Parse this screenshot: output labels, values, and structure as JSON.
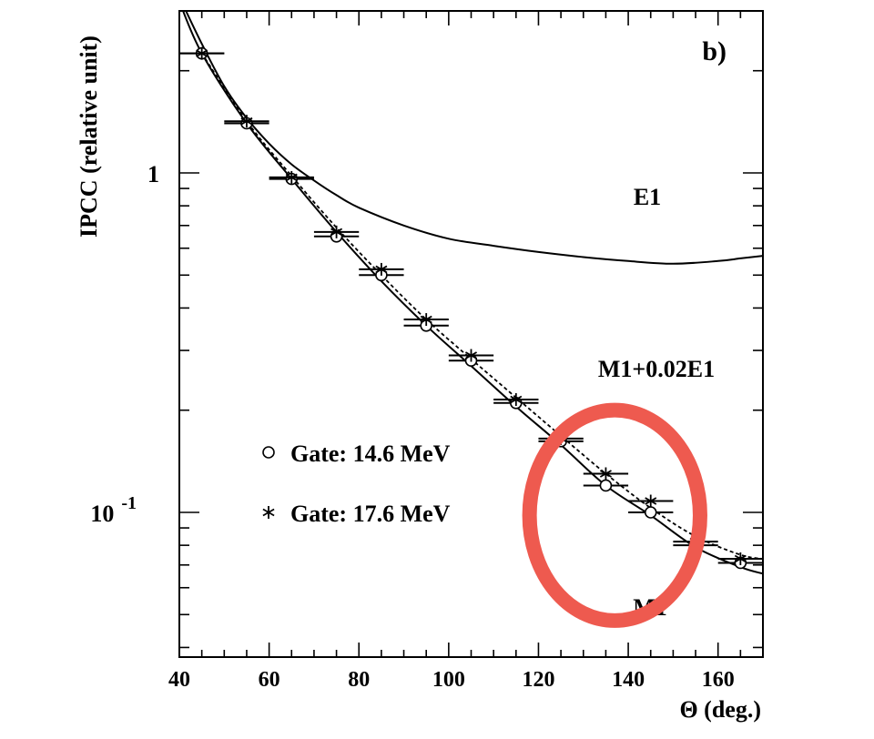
{
  "chart_data": {
    "type": "scatter",
    "panel_label": "b)",
    "xlabel": "Θ (deg.)",
    "ylabel": "IPCC (relative unit)",
    "x_scale": "linear",
    "y_scale": "log",
    "xlim": [
      40,
      170
    ],
    "ylim": [
      0.04,
      3.0
    ],
    "x_ticks": [
      "40",
      "60",
      "80",
      "100",
      "120",
      "140",
      "160"
    ],
    "y_tick_labels": [
      {
        "value": 1,
        "base": "1",
        "exp": ""
      },
      {
        "value": 0.1,
        "base": "10",
        "exp": "-1"
      }
    ],
    "curves": [
      {
        "label": "E1",
        "style": "solid",
        "x": [
          40,
          45,
          50,
          55,
          60,
          65,
          70,
          75,
          80,
          90,
          100,
          110,
          120,
          130,
          140,
          150,
          160,
          165,
          170
        ],
        "y": [
          3.3,
          2.4,
          1.8,
          1.45,
          1.22,
          1.06,
          0.95,
          0.86,
          0.79,
          0.7,
          0.64,
          0.61,
          0.585,
          0.565,
          0.55,
          0.54,
          0.55,
          0.56,
          0.57
        ]
      },
      {
        "label": "M1",
        "style": "solid",
        "x": [
          40,
          45,
          55,
          65,
          75,
          85,
          95,
          105,
          115,
          125,
          135,
          145,
          155,
          165,
          170
        ],
        "y": [
          3.2,
          2.25,
          1.4,
          0.96,
          0.67,
          0.48,
          0.355,
          0.27,
          0.205,
          0.158,
          0.12,
          0.098,
          0.079,
          0.069,
          0.066
        ]
      },
      {
        "label": "M1+0.02E1",
        "style": "dashed",
        "x": [
          45,
          55,
          65,
          75,
          85,
          95,
          105,
          115,
          125,
          135,
          145,
          155,
          165,
          170
        ],
        "y": [
          2.25,
          1.42,
          0.98,
          0.69,
          0.5,
          0.37,
          0.283,
          0.218,
          0.168,
          0.13,
          0.103,
          0.085,
          0.075,
          0.073
        ]
      }
    ],
    "series": [
      {
        "name": "Gate: 14.6 MeV",
        "marker": "circle",
        "x": [
          45,
          55,
          65,
          75,
          85,
          95,
          105,
          115,
          125,
          135,
          145,
          155,
          165
        ],
        "y": [
          2.25,
          1.4,
          0.96,
          0.65,
          0.5,
          0.355,
          0.28,
          0.21,
          0.162,
          0.12,
          0.1,
          0.08,
          0.071
        ]
      },
      {
        "name": "Gate: 17.6 MeV",
        "marker": "asterisk",
        "x": [
          45,
          55,
          65,
          75,
          85,
          95,
          105,
          115,
          125,
          135,
          145,
          155,
          165
        ],
        "y": [
          2.25,
          1.42,
          0.97,
          0.67,
          0.52,
          0.37,
          0.29,
          0.215,
          0.165,
          0.13,
          0.108,
          0.082,
          0.073
        ]
      }
    ],
    "x_error_half_width": 5,
    "annotation": {
      "type": "ellipse",
      "color": "#ee5a4f",
      "cx": 137,
      "cy": 0.098,
      "rx_deg": 19,
      "ry_decades": 0.31
    }
  }
}
